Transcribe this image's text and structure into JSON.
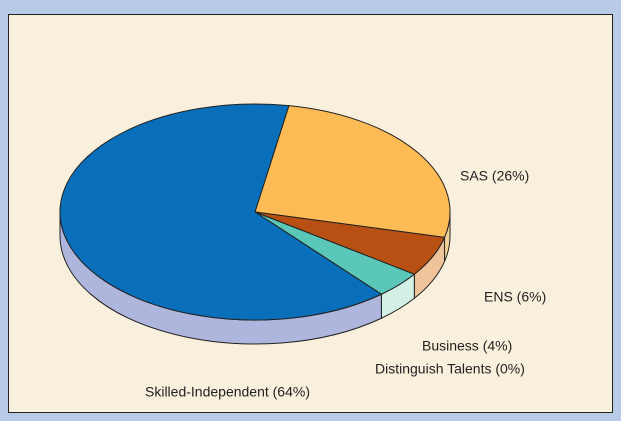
{
  "chart_data": {
    "type": "pie",
    "labels": [
      "Skilled-Independent (64%)",
      "SAS (26%)",
      "ENS (6%)",
      "Business (4%)",
      "Distinguish Talents (0%)"
    ],
    "values": [
      64,
      26,
      6,
      4,
      0
    ],
    "colors": [
      "#0a6fba",
      "#fdbb55",
      "#b85014",
      "#5bc7b8",
      "#9a6fb0"
    ],
    "side_colors": [
      "#aeb6de",
      "#f2d49a",
      "#efc49a",
      "#d2f0e6",
      "#d8c8e6"
    ]
  }
}
